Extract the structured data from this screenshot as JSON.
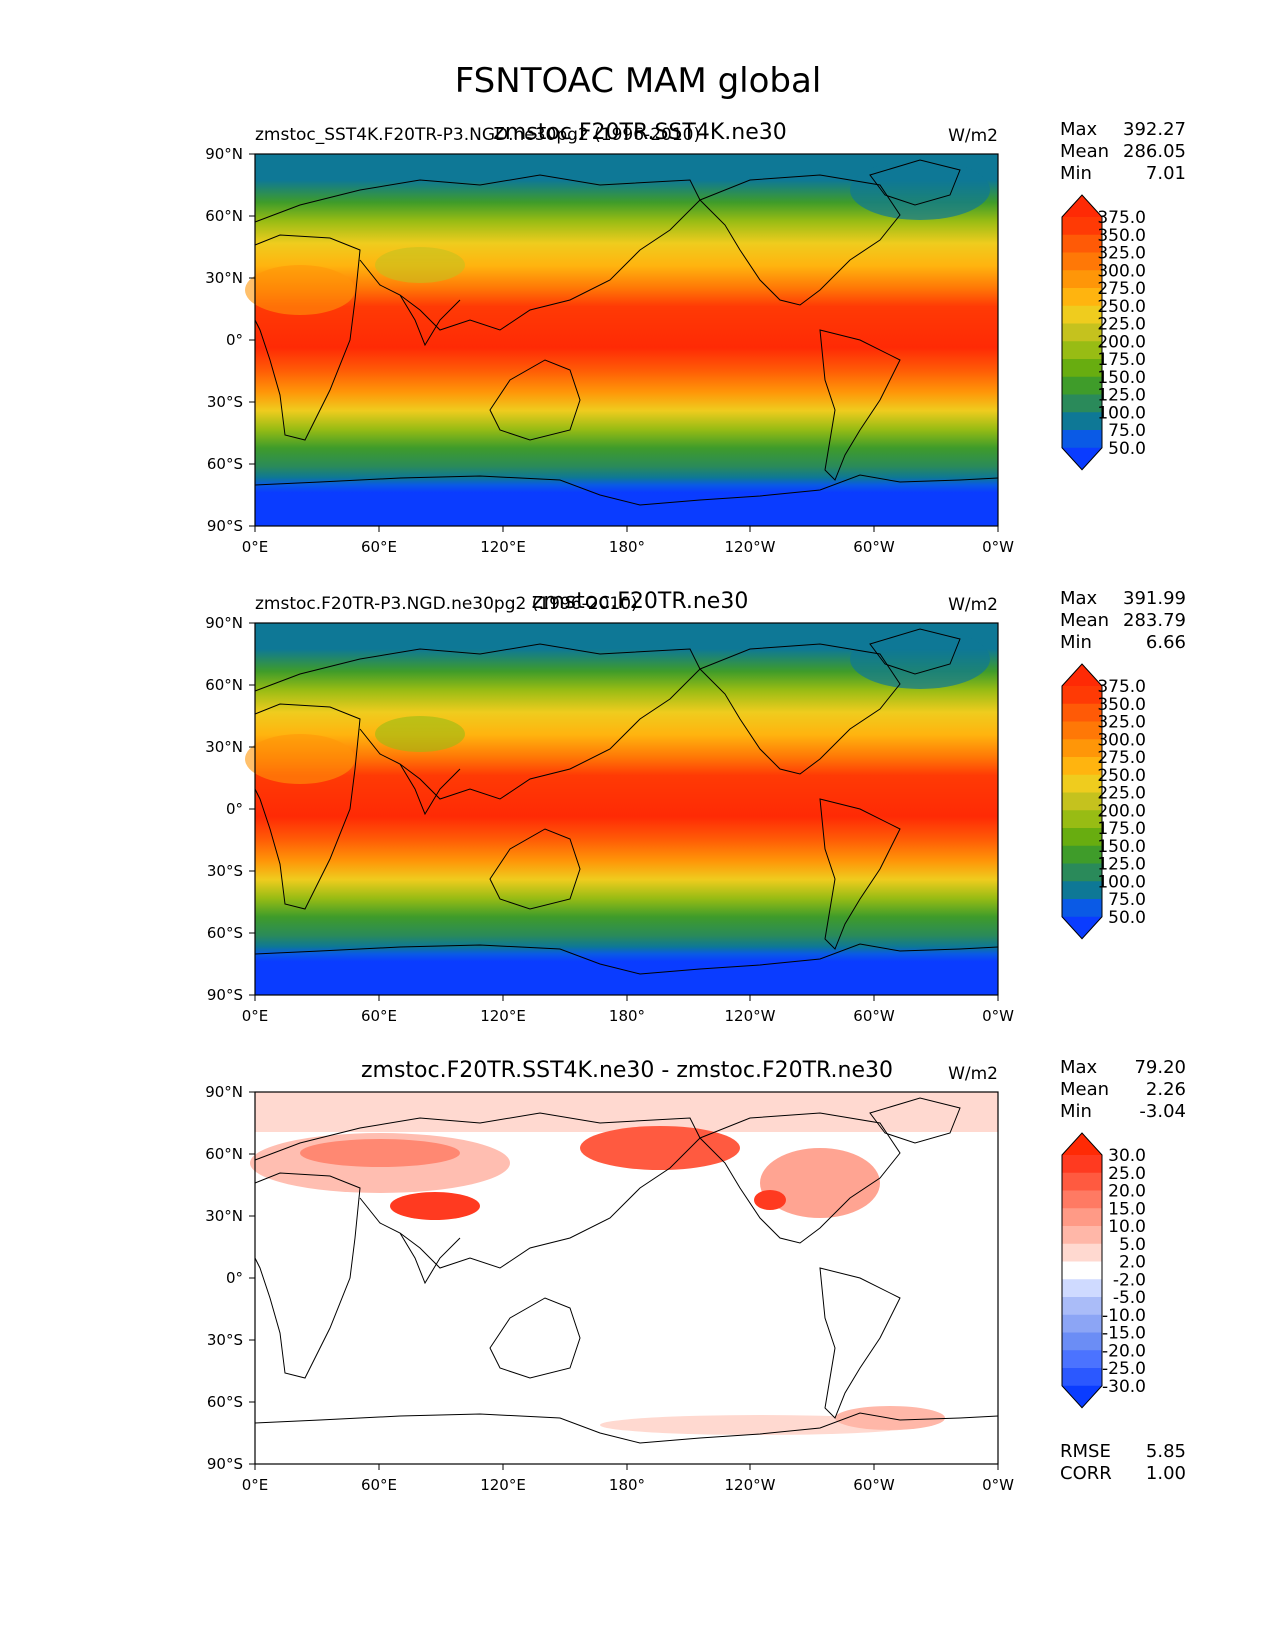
{
  "figure": {
    "title": "FSNTOAC MAM global"
  },
  "axis": {
    "lat_ticks": [
      "90°N",
      "60°N",
      "30°N",
      "0°",
      "30°S",
      "60°S",
      "90°S"
    ],
    "lon_ticks": [
      "0°E",
      "60°E",
      "120°E",
      "180°",
      "120°W",
      "60°W",
      "0°W"
    ]
  },
  "colors": {
    "abs_scale": [
      "#0a3cff",
      "#0a5ae6",
      "#0e7896",
      "#2a8a5a",
      "#3f9c2a",
      "#68ad10",
      "#98bc14",
      "#c5c21e",
      "#efcc1e",
      "#ffb40f",
      "#ff9608",
      "#ff7806",
      "#ff5a06",
      "#ff3a05",
      "#ff2a05"
    ],
    "diff_scale": [
      "#0a3cff",
      "#2b58ff",
      "#4b73ff",
      "#6b8df5",
      "#8ca5f5",
      "#aabcf8",
      "#cfdaff",
      "#ffffff",
      "#ffd9d0",
      "#ffb7a8",
      "#ff9a86",
      "#ff7a63",
      "#ff5a40",
      "#ff3a20",
      "#ff2a05"
    ],
    "coast": "#000000"
  },
  "panels": [
    {
      "id": "panel-1",
      "title_left": "zmstoc_SST4K.F20TR-P3.NGD.ne30pg2 (1996-2010)",
      "title_center": "zmstoc.F20TR.SST4K.ne30",
      "units": "W/m2",
      "stats": {
        "max_label": "Max",
        "max": "392.27",
        "mean_label": "Mean",
        "mean": "286.05",
        "min_label": "Min",
        "min": "7.01"
      },
      "colorbar_labels": [
        "375.0",
        "350.0",
        "325.0",
        "300.0",
        "275.0",
        "250.0",
        "225.0",
        "200.0",
        "175.0",
        "150.0",
        "125.0",
        "100.0",
        "75.0",
        "50.0"
      ]
    },
    {
      "id": "panel-2",
      "title_left": "zmstoc.F20TR-P3.NGD.ne30pg2 (1996-2010)",
      "title_center": "zmstoc.F20TR.ne30",
      "units": "W/m2",
      "stats": {
        "max_label": "Max",
        "max": "391.99",
        "mean_label": "Mean",
        "mean": "283.79",
        "min_label": "Min",
        "min": "6.66"
      },
      "colorbar_labels": [
        "375.0",
        "350.0",
        "325.0",
        "300.0",
        "275.0",
        "250.0",
        "225.0",
        "200.0",
        "175.0",
        "150.0",
        "125.0",
        "100.0",
        "75.0",
        "50.0"
      ]
    },
    {
      "id": "panel-3",
      "title_center": "zmstoc.F20TR.SST4K.ne30 - zmstoc.F20TR.ne30",
      "units": "W/m2",
      "stats": {
        "max_label": "Max",
        "max": "79.20",
        "mean_label": "Mean",
        "mean": "2.26",
        "min_label": "Min",
        "min": "-3.04"
      },
      "colorbar_labels": [
        "30.0",
        "25.0",
        "20.0",
        "15.0",
        "10.0",
        "5.0",
        "2.0",
        "-2.0",
        "-5.0",
        "-10.0",
        "-15.0",
        "-20.0",
        "-25.0",
        "-30.0"
      ],
      "rmse_label": "RMSE",
      "rmse": "5.85",
      "corr_label": "CORR",
      "corr": "1.00"
    }
  ],
  "chart_data": [
    {
      "type": "heatmap",
      "title": "zmstoc.F20TR.SST4K.ne30",
      "subtitle": "zmstoc_SST4K.F20TR-P3.NGD.ne30pg2 (1996-2010)",
      "units": "W/m2",
      "xlim": [
        0,
        360
      ],
      "ylim": [
        -90,
        90
      ],
      "levels": [
        50,
        75,
        100,
        125,
        150,
        175,
        200,
        225,
        250,
        275,
        300,
        325,
        350,
        375
      ],
      "max": 392.27,
      "mean": 286.05,
      "min": 7.01,
      "zonal_profile": {
        "lat": [
          90,
          75,
          60,
          45,
          30,
          15,
          0,
          -15,
          -30,
          -45,
          -60,
          -70,
          -90
        ],
        "value": [
          95,
          110,
          190,
          250,
          300,
          345,
          380,
          370,
          310,
          240,
          150,
          60,
          20
        ]
      }
    },
    {
      "type": "heatmap",
      "title": "zmstoc.F20TR.ne30",
      "subtitle": "zmstoc.F20TR-P3.NGD.ne30pg2 (1996-2010)",
      "units": "W/m2",
      "xlim": [
        0,
        360
      ],
      "ylim": [
        -90,
        90
      ],
      "levels": [
        50,
        75,
        100,
        125,
        150,
        175,
        200,
        225,
        250,
        275,
        300,
        325,
        350,
        375
      ],
      "max": 391.99,
      "mean": 283.79,
      "min": 6.66,
      "zonal_profile": {
        "lat": [
          90,
          75,
          60,
          45,
          30,
          15,
          0,
          -15,
          -30,
          -45,
          -60,
          -70,
          -90
        ],
        "value": [
          90,
          105,
          180,
          245,
          298,
          343,
          378,
          368,
          308,
          238,
          148,
          58,
          18
        ]
      }
    },
    {
      "type": "heatmap",
      "title": "zmstoc.F20TR.SST4K.ne30 - zmstoc.F20TR.ne30",
      "units": "W/m2",
      "xlim": [
        0,
        360
      ],
      "ylim": [
        -90,
        90
      ],
      "levels": [
        -30,
        -25,
        -20,
        -15,
        -10,
        -5,
        -2,
        2,
        5,
        10,
        15,
        20,
        25,
        30
      ],
      "max": 79.2,
      "mean": 2.26,
      "min": -3.04,
      "rmse": 5.85,
      "corr": 1.0,
      "positive_regions": [
        {
          "lon": [
            20,
            80
          ],
          "lat": [
            50,
            70
          ],
          "value": 20
        },
        {
          "lon": [
            75,
            105
          ],
          "lat": [
            28,
            40
          ],
          "value": 30
        },
        {
          "lon": [
            150,
            210
          ],
          "lat": [
            55,
            70
          ],
          "value": 25
        },
        {
          "lon": [
            230,
            290
          ],
          "lat": [
            40,
            65
          ],
          "value": 15
        },
        {
          "lon": [
            270,
            330
          ],
          "lat": [
            -75,
            -60
          ],
          "value": 8
        }
      ]
    }
  ]
}
